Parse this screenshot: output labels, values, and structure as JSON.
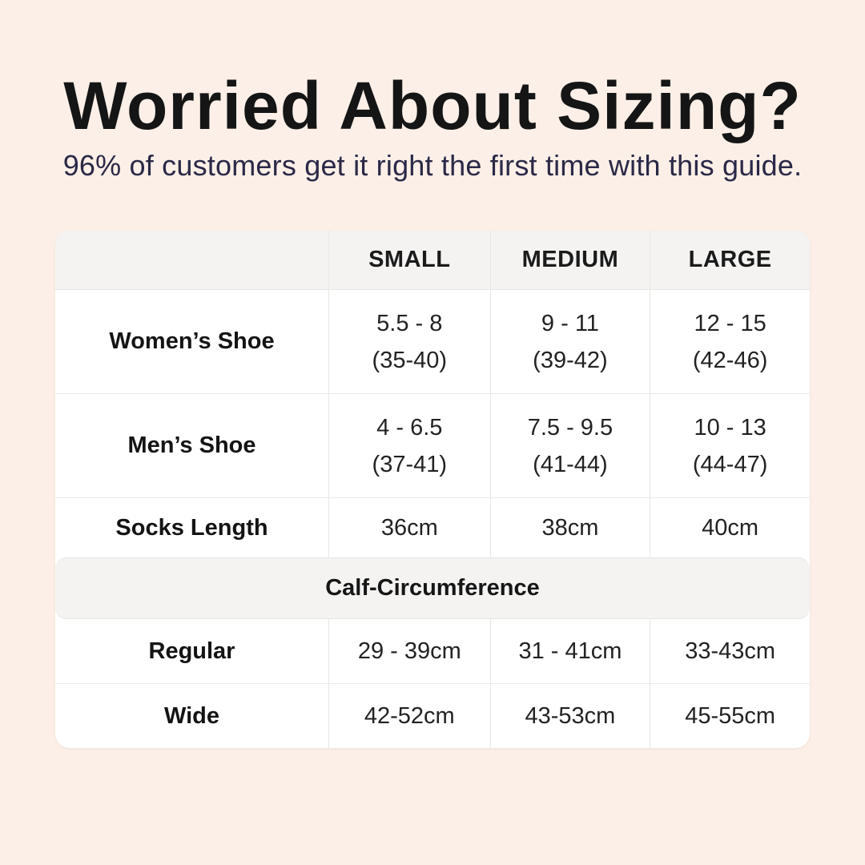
{
  "header": {
    "title": "Worried About Sizing?",
    "subtitle": "96% of customers get it right the first time with this guide."
  },
  "colors": {
    "page_background": "#fbefe7",
    "card_background": "#ffffff",
    "band_background": "#f4f3f2",
    "title_text": "#151515",
    "subtitle_text": "#2b2847",
    "table_text": "#1f1f1f",
    "divider": "#e9e6e3"
  },
  "table": {
    "size_headers": [
      "SMALL",
      "MEDIUM",
      "LARGE"
    ],
    "rows": [
      {
        "label": "Women’s Shoe",
        "cells": [
          {
            "line1": "5.5 - 8",
            "line2": "(35-40)"
          },
          {
            "line1": "9 - 11",
            "line2": "(39-42)"
          },
          {
            "line1": "12 - 15",
            "line2": "(42-46)"
          }
        ]
      },
      {
        "label": "Men’s Shoe",
        "cells": [
          {
            "line1": "4 - 6.5",
            "line2": "(37-41)"
          },
          {
            "line1": "7.5 - 9.5",
            "line2": "(41-44)"
          },
          {
            "line1": "10 - 13",
            "line2": "(44-47)"
          }
        ]
      },
      {
        "label": "Socks Length",
        "cells": [
          {
            "line1": "36cm"
          },
          {
            "line1": "38cm"
          },
          {
            "line1": "40cm"
          }
        ]
      }
    ],
    "section_header": "Calf-Circumference",
    "calf_rows": [
      {
        "label": "Regular",
        "cells": [
          {
            "line1": "29 - 39cm"
          },
          {
            "line1": "31 - 41cm"
          },
          {
            "line1": "33-43cm"
          }
        ]
      },
      {
        "label": "Wide",
        "cells": [
          {
            "line1": "42-52cm"
          },
          {
            "line1": "43-53cm"
          },
          {
            "line1": "45-55cm"
          }
        ]
      }
    ]
  },
  "chart_data": {
    "type": "table",
    "title": "Worried About Sizing?",
    "subtitle": "96% of customers get it right the first time with this guide.",
    "columns": [
      "",
      "SMALL",
      "MEDIUM",
      "LARGE"
    ],
    "rows": [
      [
        "Women’s Shoe",
        "5.5 - 8 (35-40)",
        "9 - 11 (39-42)",
        "12 - 15 (42-46)"
      ],
      [
        "Men’s Shoe",
        "4 - 6.5 (37-41)",
        "7.5 - 9.5 (41-44)",
        "10 - 13 (44-47)"
      ],
      [
        "Socks Length",
        "36cm",
        "38cm",
        "40cm"
      ],
      [
        "Calf-Circumference",
        "",
        "",
        ""
      ],
      [
        "Regular",
        "29 - 39cm",
        "31 - 41cm",
        "33-43cm"
      ],
      [
        "Wide",
        "42-52cm",
        "43-53cm",
        "45-55cm"
      ]
    ],
    "layout_hints": {
      "section_header_rows": [
        3
      ],
      "first_column_is_row_label": true
    }
  }
}
